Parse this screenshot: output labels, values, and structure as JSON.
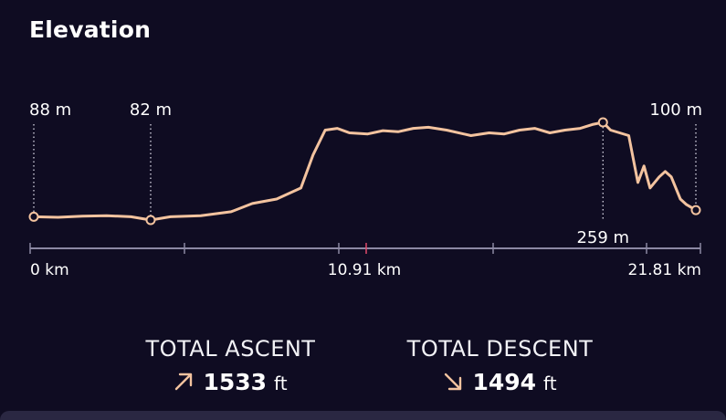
{
  "page": {
    "title": "Elevation"
  },
  "chart_data": {
    "type": "line",
    "x_unit": "km",
    "x_ticks": [
      "0 km",
      "10.91 km",
      "21.81 km"
    ],
    "xlim": [
      0,
      21.81
    ],
    "markers": [
      {
        "x": 0,
        "label": "88 m"
      },
      {
        "x": 3.85,
        "label": "82 m"
      },
      {
        "x": 18.75,
        "label": "259 m"
      },
      {
        "x": 21.81,
        "label": "100 m"
      }
    ],
    "series": [
      {
        "x": [
          0,
          0.8,
          1.6,
          2.4,
          3.2,
          3.85,
          4.5,
          5.5,
          6.5,
          7.2,
          8.0,
          8.8,
          9.2,
          9.6,
          10.0,
          10.4,
          11.0,
          11.5,
          12.0,
          12.5,
          13.0,
          13.6,
          14.4,
          15.0,
          15.5,
          16.0,
          16.5,
          17.0,
          17.5,
          18.0,
          18.4,
          18.75,
          19.0,
          19.3,
          19.6,
          19.9,
          20.1,
          20.3,
          20.6,
          20.8,
          21.0,
          21.3,
          21.5,
          21.81
        ],
        "values": [
          88,
          87,
          89,
          90,
          88,
          82,
          88,
          90,
          97,
          112,
          120,
          140,
          200,
          245,
          248,
          240,
          238,
          244,
          242,
          248,
          250,
          245,
          235,
          240,
          238,
          245,
          248,
          240,
          245,
          248,
          255,
          259,
          245,
          240,
          235,
          150,
          180,
          140,
          160,
          170,
          160,
          120,
          110,
          100
        ]
      }
    ]
  },
  "stats": {
    "ascent_label": "TOTAL ASCENT",
    "ascent_value": "1533",
    "ascent_unit": "ft",
    "ascent_icon": "arrow-up-right-icon",
    "descent_label": "TOTAL DESCENT",
    "descent_value": "1494",
    "descent_unit": "ft",
    "descent_icon": "arrow-down-right-icon"
  },
  "colors": {
    "background": "#0f0c22",
    "line": "#f3c39f",
    "axis": "#8c88a3",
    "midpoint_tick": "#e04a6a"
  }
}
